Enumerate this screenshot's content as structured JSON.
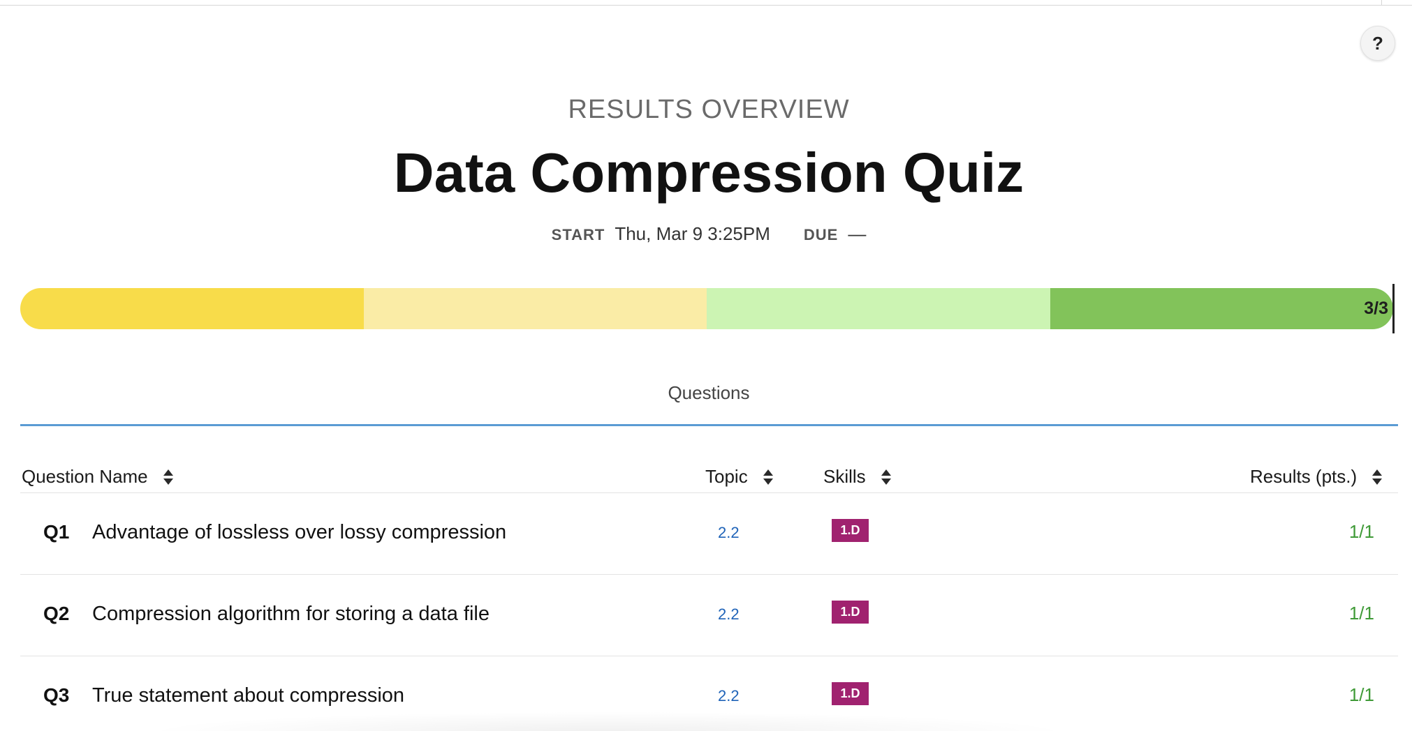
{
  "header": {
    "help_label": "?",
    "subtitle": "RESULTS OVERVIEW",
    "title": "Data Compression Quiz",
    "start_label": "START",
    "start_value": "Thu, Mar 9 3:25PM",
    "due_label": "DUE",
    "due_value": "—"
  },
  "progress": {
    "label": "3/3",
    "score": 3,
    "total": 3,
    "segment_colors": [
      "#f8dc4a",
      "#faeca6",
      "#ccf4b3",
      "#82c35a"
    ]
  },
  "tabs": {
    "questions_label": "Questions"
  },
  "table": {
    "columns": {
      "name": "Question Name",
      "topic": "Topic",
      "skills": "Skills",
      "results": "Results (pts.)"
    },
    "rows": [
      {
        "num": "Q1",
        "name": "Advantage of lossless over lossy compression",
        "topic": "2.2",
        "skill": "1.D",
        "result": "1/1"
      },
      {
        "num": "Q2",
        "name": "Compression algorithm for storing a data file",
        "topic": "2.2",
        "skill": "1.D",
        "result": "1/1"
      },
      {
        "num": "Q3",
        "name": "True statement about compression",
        "topic": "2.2",
        "skill": "1.D",
        "result": "1/1"
      }
    ]
  },
  "colors": {
    "skill_badge": "#a0226f",
    "result_text": "#3f9a37",
    "topic_link": "#1f63b8",
    "tab_underline": "#5a9bd4"
  },
  "icons": {
    "help": "question-mark-icon",
    "sort": "sort-updown-icon"
  }
}
